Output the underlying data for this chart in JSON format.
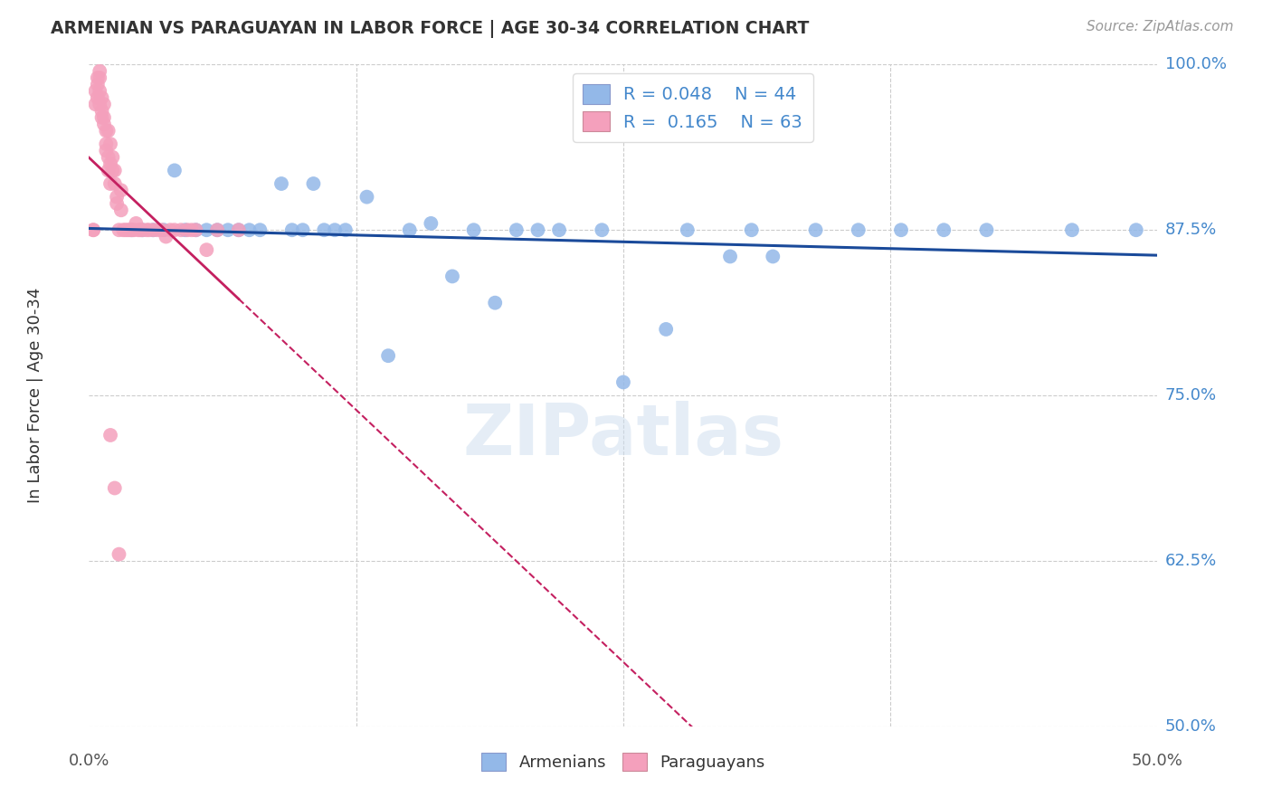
{
  "title": "ARMENIAN VS PARAGUAYAN IN LABOR FORCE | AGE 30-34 CORRELATION CHART",
  "source": "Source: ZipAtlas.com",
  "ylabel": "In Labor Force | Age 30-34",
  "xlim": [
    0.0,
    0.5
  ],
  "ylim": [
    0.5,
    1.0
  ],
  "yticks": [
    0.5,
    0.625,
    0.75,
    0.875,
    1.0
  ],
  "ytick_labels": [
    "50.0%",
    "62.5%",
    "75.0%",
    "87.5%",
    "100.0%"
  ],
  "xtick_positions": [
    0.0,
    0.125,
    0.25,
    0.375,
    0.5
  ],
  "armenian_color": "#93B8E8",
  "paraguayan_color": "#F4A0BC",
  "trendline_armenian_color": "#1A4A9A",
  "trendline_paraguayan_color": "#C42060",
  "legend_R_armenian": "R = 0.048",
  "legend_N_armenian": "N = 44",
  "legend_R_paraguayan": "R =  0.165",
  "legend_N_paraguayan": "N = 63",
  "watermark": "ZIPatlas",
  "armenian_x": [
    0.02,
    0.025,
    0.03,
    0.035,
    0.04,
    0.045,
    0.05,
    0.055,
    0.06,
    0.065,
    0.07,
    0.075,
    0.08,
    0.09,
    0.095,
    0.1,
    0.105,
    0.11,
    0.115,
    0.12,
    0.13,
    0.14,
    0.15,
    0.16,
    0.17,
    0.18,
    0.19,
    0.2,
    0.21,
    0.22,
    0.24,
    0.25,
    0.27,
    0.28,
    0.3,
    0.31,
    0.32,
    0.34,
    0.36,
    0.38,
    0.4,
    0.42,
    0.46,
    0.49
  ],
  "armenian_y": [
    0.875,
    0.875,
    0.875,
    0.875,
    0.92,
    0.875,
    0.875,
    0.875,
    0.875,
    0.875,
    0.875,
    0.875,
    0.875,
    0.91,
    0.875,
    0.875,
    0.91,
    0.875,
    0.875,
    0.875,
    0.9,
    0.78,
    0.875,
    0.88,
    0.84,
    0.875,
    0.82,
    0.875,
    0.875,
    0.875,
    0.875,
    0.76,
    0.8,
    0.875,
    0.855,
    0.875,
    0.855,
    0.875,
    0.875,
    0.875,
    0.875,
    0.875,
    0.875,
    0.875
  ],
  "paraguayan_x": [
    0.002,
    0.002,
    0.003,
    0.003,
    0.004,
    0.004,
    0.004,
    0.005,
    0.005,
    0.005,
    0.005,
    0.006,
    0.006,
    0.006,
    0.007,
    0.007,
    0.007,
    0.008,
    0.008,
    0.008,
    0.009,
    0.009,
    0.009,
    0.01,
    0.01,
    0.01,
    0.011,
    0.011,
    0.012,
    0.012,
    0.013,
    0.013,
    0.014,
    0.015,
    0.015,
    0.016,
    0.017,
    0.018,
    0.019,
    0.02,
    0.021,
    0.022,
    0.023,
    0.024,
    0.025,
    0.027,
    0.028,
    0.03,
    0.032,
    0.034,
    0.036,
    0.038,
    0.04,
    0.043,
    0.046,
    0.048,
    0.05,
    0.055,
    0.06,
    0.07,
    0.01,
    0.012,
    0.014
  ],
  "paraguayan_y": [
    0.875,
    0.875,
    0.97,
    0.98,
    0.99,
    0.985,
    0.975,
    0.995,
    0.99,
    0.98,
    0.97,
    0.96,
    0.975,
    0.965,
    0.97,
    0.96,
    0.955,
    0.95,
    0.94,
    0.935,
    0.95,
    0.93,
    0.92,
    0.94,
    0.925,
    0.91,
    0.93,
    0.92,
    0.91,
    0.92,
    0.9,
    0.895,
    0.875,
    0.905,
    0.89,
    0.875,
    0.875,
    0.875,
    0.875,
    0.875,
    0.875,
    0.88,
    0.875,
    0.875,
    0.875,
    0.875,
    0.875,
    0.875,
    0.875,
    0.875,
    0.87,
    0.875,
    0.875,
    0.875,
    0.875,
    0.875,
    0.875,
    0.86,
    0.875,
    0.875,
    0.72,
    0.68,
    0.63
  ],
  "trendline_paraguayan_x_start": 0.0,
  "trendline_paraguayan_x_solid_end": 0.07,
  "trendline_paraguayan_x_end": 0.5,
  "background_color": "#ffffff",
  "grid_color": "#cccccc",
  "right_tick_color": "#4488cc"
}
